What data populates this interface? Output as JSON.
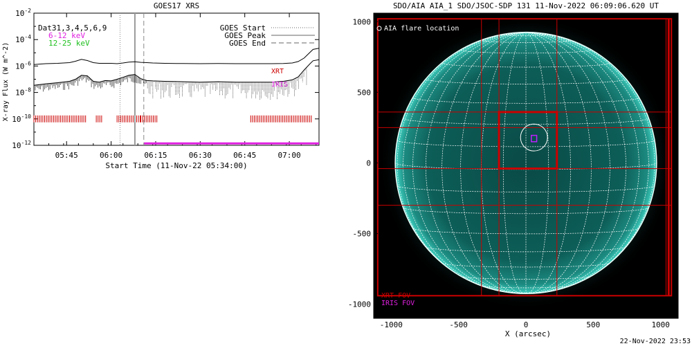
{
  "chart_data": [
    {
      "type": "line",
      "title": "GOES17 XRS",
      "xlabel": "Start Time (11-Nov-22 05:34:00)",
      "ylabel": "X-ray Flux (W m^-2)",
      "y_scale": "log",
      "ylim": [
        1e-12,
        0.01
      ],
      "xlim": [
        "05:34",
        "07:10"
      ],
      "x_ticks": [
        "05:45",
        "06:00",
        "06:15",
        "06:30",
        "06:45",
        "07:00"
      ],
      "y_ticks": [
        "10^-12",
        "10^-10",
        "10^-8",
        "10^-6",
        "10^-4",
        "10^-2"
      ],
      "legend_left": [
        {
          "text": "Dat31,3,4,5,6,9",
          "color": "#000000"
        },
        {
          "text": "6-12 keV",
          "color": "#e020e0"
        },
        {
          "text": "12-25 keV",
          "color": "#20c020"
        }
      ],
      "legend_right": [
        {
          "text": "GOES Start",
          "style": "dotted"
        },
        {
          "text": "GOES Peak",
          "style": "solid"
        },
        {
          "text": "GOES End",
          "style": "dashed"
        }
      ],
      "series": [
        {
          "key": "long",
          "x": [
            "05:34",
            "05:38",
            "05:42",
            "05:46",
            "05:48",
            "05:50",
            "05:52",
            "05:54",
            "05:56",
            "05:58",
            "06:00",
            "06:02",
            "06:04",
            "06:06",
            "06:08",
            "06:10",
            "06:12",
            "06:14",
            "06:18",
            "06:24",
            "06:30",
            "06:36",
            "06:42",
            "06:48",
            "06:54",
            "06:58",
            "07:01",
            "07:03",
            "07:05",
            "07:07",
            "07:08",
            "07:10"
          ],
          "y": [
            1.3e-06,
            1.5e-06,
            1.6e-06,
            1.8e-06,
            2.3e-06,
            3.2e-06,
            2.6e-06,
            1.8e-06,
            1.6e-06,
            1.6e-06,
            1.6e-06,
            1.5e-06,
            1.7e-06,
            2e-06,
            2.1e-06,
            1.9e-06,
            1.8e-06,
            1.7e-06,
            1.6e-06,
            1.55e-06,
            1.5e-06,
            1.55e-06,
            1.5e-06,
            1.5e-06,
            1.5e-06,
            1.55e-06,
            1.7e-06,
            2.2e-06,
            4e-06,
            1.1e-05,
            1.8e-05,
            2.2e-05
          ]
        },
        {
          "key": "short",
          "x": [
            "05:34",
            "05:38",
            "05:42",
            "05:46",
            "05:48",
            "05:50",
            "05:52",
            "05:54",
            "05:56",
            "05:58",
            "06:00",
            "06:02",
            "06:04",
            "06:06",
            "06:08",
            "06:10",
            "06:12",
            "06:14",
            "06:18",
            "06:24",
            "06:30",
            "06:36",
            "06:42",
            "06:48",
            "06:54",
            "06:58",
            "07:01",
            "07:03",
            "07:05",
            "07:07",
            "07:08",
            "07:10"
          ],
          "y": [
            3.5e-08,
            4.5e-08,
            5.5e-08,
            7e-08,
            1e-07,
            2e-07,
            1.8e-07,
            7e-08,
            6e-08,
            8e-08,
            7.5e-08,
            1e-07,
            1.4e-07,
            2e-07,
            2.3e-07,
            1.1e-07,
            8e-08,
            7.5e-08,
            7e-08,
            6.5e-08,
            6e-08,
            6.5e-08,
            6e-08,
            6e-08,
            6e-08,
            7e-08,
            9e-08,
            1.5e-07,
            5e-07,
            1.5e-06,
            2.5e-06,
            3e-06
          ]
        }
      ],
      "event_markers": {
        "start": "06:03",
        "peak": "06:08",
        "end": "06:11"
      },
      "annotations": [
        {
          "text": "XRT",
          "color": "#cc0000"
        },
        {
          "text": "IRIS",
          "color": "#e020e0"
        }
      ],
      "xrt_coverage": [
        [
          "05:34",
          "05:52"
        ],
        [
          "05:55",
          "05:57"
        ],
        [
          "06:02",
          "06:10"
        ],
        [
          "06:10",
          "06:16"
        ],
        [
          "06:47",
          "07:08"
        ]
      ],
      "iris_coverage": [
        [
          "06:11",
          "07:10"
        ]
      ]
    },
    {
      "type": "image",
      "title": "SDO/AIA AIA_1 SDO/JSOC-SDP 131 11-Nov-2022 06:09:06.620 UT",
      "xlabel": "X (arcsec)",
      "ylabel": "",
      "xlim": [
        -1130,
        1130
      ],
      "ylim": [
        -1100,
        1060
      ],
      "x_ticks": [
        "-1000",
        "-500",
        "0",
        "500",
        "1000"
      ],
      "y_ticks": [
        "1000",
        "500",
        "0",
        "-500",
        "-1000"
      ],
      "legend": [
        {
          "text": "AIA flare location",
          "symbol": "circle",
          "color": "#ffffff"
        }
      ],
      "labels": [
        {
          "text": "XRT FOV",
          "color": "#cc0000"
        },
        {
          "text": "IRIS FOV",
          "color": "#e020e0"
        }
      ],
      "solar_radius_arcsec": 970,
      "flare_location": [
        60,
        180
      ],
      "flare_circle_radius_arcsec": 100,
      "xrt_fov_outer": [
        -1100,
        -940,
        1080,
        1020
      ],
      "xrt_fov_inner": [
        -200,
        -40,
        230,
        360
      ],
      "xrt_grid_x": [
        -330,
        -200,
        230,
        1040
      ],
      "xrt_grid_y": [
        -300,
        -40,
        250,
        360
      ],
      "iris_fov": [
        40,
        150,
        80,
        195
      ],
      "colors": {
        "disk": "#0c5a55",
        "limb": "#3fd0c0",
        "xrt": "#cc0000",
        "iris": "#c020ff",
        "grid": "#ffffff"
      }
    }
  ],
  "footer": {
    "timestamp": "22-Nov-2022 23:53"
  }
}
